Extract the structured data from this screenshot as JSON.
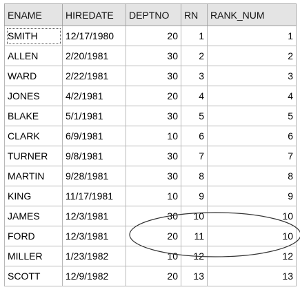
{
  "grid": {
    "columns": [
      {
        "key": "ename",
        "label": "ENAME"
      },
      {
        "key": "hiredate",
        "label": "HIREDATE"
      },
      {
        "key": "deptno",
        "label": "DEPTNO"
      },
      {
        "key": "rn",
        "label": "RN"
      },
      {
        "key": "rank_num",
        "label": "RANK_NUM"
      }
    ],
    "rows": [
      {
        "ename": "SMITH",
        "hiredate": "12/17/1980",
        "deptno": "20",
        "rn": "1",
        "rank_num": "1"
      },
      {
        "ename": "ALLEN",
        "hiredate": "2/20/1981",
        "deptno": "30",
        "rn": "2",
        "rank_num": "2"
      },
      {
        "ename": "WARD",
        "hiredate": "2/22/1981",
        "deptno": "30",
        "rn": "3",
        "rank_num": "3"
      },
      {
        "ename": "JONES",
        "hiredate": "4/2/1981",
        "deptno": "20",
        "rn": "4",
        "rank_num": "4"
      },
      {
        "ename": "BLAKE",
        "hiredate": "5/1/1981",
        "deptno": "30",
        "rn": "5",
        "rank_num": "5"
      },
      {
        "ename": "CLARK",
        "hiredate": "6/9/1981",
        "deptno": "10",
        "rn": "6",
        "rank_num": "6"
      },
      {
        "ename": "TURNER",
        "hiredate": "9/8/1981",
        "deptno": "30",
        "rn": "7",
        "rank_num": "7"
      },
      {
        "ename": "MARTIN",
        "hiredate": "9/28/1981",
        "deptno": "30",
        "rn": "8",
        "rank_num": "8"
      },
      {
        "ename": "KING",
        "hiredate": "11/17/1981",
        "deptno": "10",
        "rn": "9",
        "rank_num": "9"
      },
      {
        "ename": "JAMES",
        "hiredate": "12/3/1981",
        "deptno": "30",
        "rn": "10",
        "rank_num": "10"
      },
      {
        "ename": "FORD",
        "hiredate": "12/3/1981",
        "deptno": "20",
        "rn": "11",
        "rank_num": "10"
      },
      {
        "ename": "MILLER",
        "hiredate": "1/23/1982",
        "deptno": "10",
        "rn": "12",
        "rank_num": "12"
      },
      {
        "ename": "SCOTT",
        "hiredate": "12/9/1982",
        "deptno": "20",
        "rn": "13",
        "rank_num": "13"
      }
    ]
  },
  "colors": {
    "header_bg": "#e4e4e4",
    "grid_line": "#b8b8b8",
    "annotation": "#333333"
  }
}
